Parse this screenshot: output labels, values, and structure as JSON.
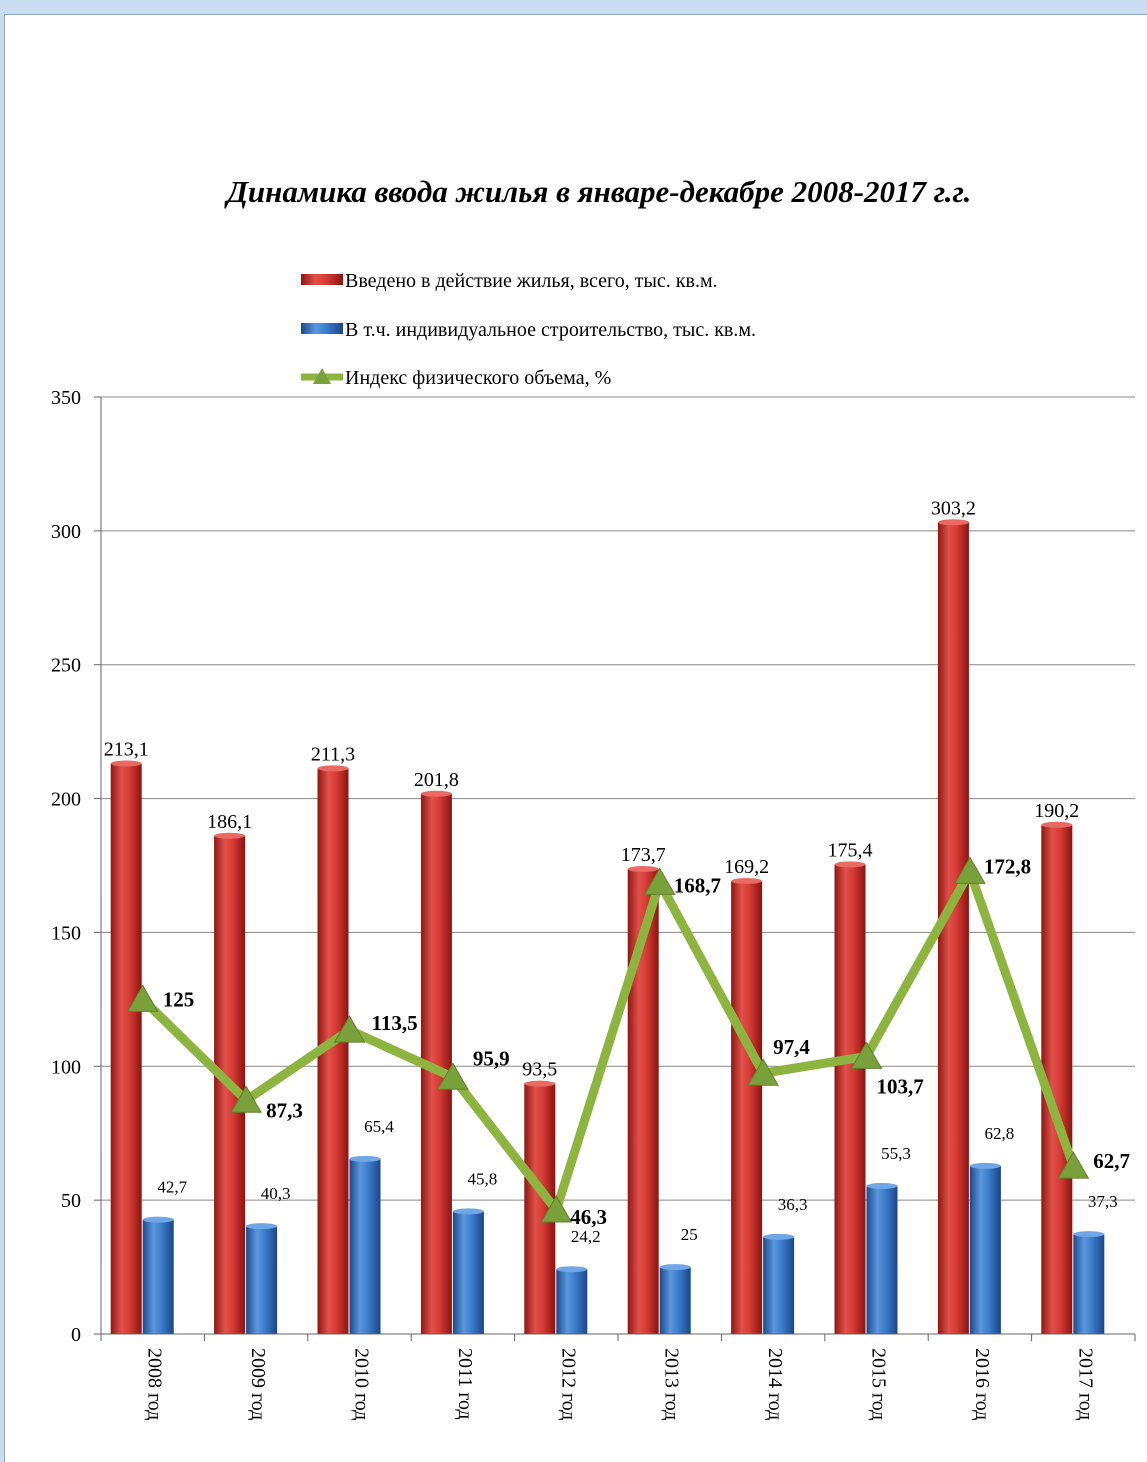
{
  "chart_data": {
    "type": "bar",
    "title": "Динамика ввода жилья в январе-декабре 2008-2017 г.г.",
    "categories": [
      "2008 год",
      "2009 год",
      "2010 год",
      "2011 год",
      "2012 год",
      "2013 год",
      "2014 год",
      "2015 год",
      "2016 год",
      "2017 год"
    ],
    "series": [
      {
        "name": "Введено в действие жилья, всего, тыс. кв.м.",
        "kind": "bar",
        "color": "#c0302c",
        "values": [
          213.1,
          186.1,
          211.3,
          201.8,
          93.5,
          173.7,
          169.2,
          175.4,
          303.2,
          190.2
        ],
        "labels": [
          "213,1",
          "186,1",
          "211,3",
          "201,8",
          "93,5",
          "173,7",
          "169,2",
          "175,4",
          "303,2",
          "190,2"
        ]
      },
      {
        "name": "В т.ч. индивидуальное строительство, тыс. кв.м.",
        "kind": "bar",
        "color": "#2f6fbf",
        "values": [
          42.7,
          40.3,
          65.4,
          45.8,
          24.2,
          25,
          36.3,
          55.3,
          62.8,
          37.3
        ],
        "labels": [
          "42,7",
          "40,3",
          "65,4",
          "45,8",
          "24,2",
          "25",
          "36,3",
          "55,3",
          "62,8",
          "37,3"
        ]
      },
      {
        "name": "Индекс физического объема, %",
        "kind": "line",
        "color": "#8db43e",
        "values": [
          125,
          87.3,
          113.5,
          95.9,
          46.3,
          168.7,
          97.4,
          103.7,
          172.8,
          62.7
        ],
        "labels": [
          "125",
          "87,3",
          "113,5",
          "95,9",
          "46,3",
          "168,7",
          "97,4",
          "103,7",
          "172,8",
          "62,7"
        ]
      }
    ],
    "yticks": [
      "0",
      "50",
      "100",
      "150",
      "200",
      "250",
      "300",
      "350"
    ],
    "ylim": [
      0,
      350
    ],
    "grid": true,
    "legend_position": "top"
  }
}
